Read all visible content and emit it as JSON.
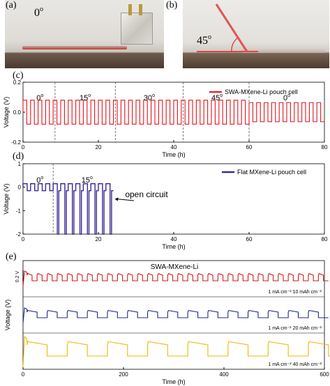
{
  "panels": {
    "a": {
      "letter": "(a)",
      "angle_label": "0",
      "angle_unit": "o"
    },
    "b": {
      "letter": "(b)",
      "angle_label": "45",
      "angle_unit": "o"
    },
    "c": {
      "letter": "(c)"
    },
    "d": {
      "letter": "(d)"
    },
    "e": {
      "letter": "(e)"
    }
  },
  "chart_data": [
    {
      "panel": "c",
      "type": "line",
      "title": "",
      "xlabel": "Time (h)",
      "ylabel": "Voltage (V)",
      "xlim": [
        0,
        80
      ],
      "ylim": [
        -0.2,
        0.2
      ],
      "xticks": [
        0,
        20,
        40,
        60,
        80
      ],
      "yticks": [
        -0.2,
        0.0,
        0.2
      ],
      "series": [
        {
          "name": "SWA-MXene-Li pouch cell",
          "color": "#e0151b",
          "pattern": "square-wave",
          "period_h": 2.0,
          "high_v": 0.08,
          "low_v": -0.08,
          "x_range": [
            0,
            80
          ]
        }
      ],
      "dividers_x": [
        8.5,
        24.5,
        42.5,
        60
      ],
      "angle_labels": [
        {
          "x": 4.5,
          "text": "0",
          "unit": "o"
        },
        {
          "x": 16.5,
          "text": "15",
          "unit": "o"
        },
        {
          "x": 33.5,
          "text": "30",
          "unit": "o"
        },
        {
          "x": 51.5,
          "text": "45",
          "unit": "o"
        },
        {
          "x": 70,
          "text": "0",
          "unit": "o"
        }
      ]
    },
    {
      "panel": "d",
      "type": "line",
      "title": "",
      "xlabel": "Time (h)",
      "ylabel": "Voltage (V)",
      "xlim": [
        0,
        80
      ],
      "ylim": [
        -2,
        1
      ],
      "xticks": [
        0,
        20,
        40,
        60,
        80
      ],
      "yticks": [
        -2,
        -1,
        0,
        1
      ],
      "series": [
        {
          "name": "Flat MXene-Li pouch cell",
          "color": "#3a2a94",
          "pattern": "square-wave-with-drops",
          "period_h": 2.0,
          "high_v": 0.15,
          "low_v": -0.15,
          "x_range": [
            0,
            24
          ],
          "drop_start_h": 8,
          "drop_v": -2.0
        }
      ],
      "dividers_x": [
        8
      ],
      "angle_labels": [
        {
          "x": 4.5,
          "text": "0",
          "unit": "o"
        },
        {
          "x": 17,
          "text": "15",
          "unit": "o"
        }
      ],
      "annotation": {
        "text": "open circuit",
        "arrow_to": [
          24,
          -0.5
        ]
      }
    },
    {
      "panel": "e",
      "type": "line",
      "title": "SWA-MXene-Li",
      "xlabel": "Time (h)",
      "ylabel": "Voltage (V)",
      "xlim": [
        0,
        600
      ],
      "xticks": [
        0,
        200,
        400,
        600
      ],
      "scale_bar": "0.2 V",
      "series": [
        {
          "name": "1 mA cm⁻²   10 mAh cm⁻²",
          "color": "#d01a1f",
          "period_h": 20
        },
        {
          "name": "1 mA cm⁻²   20 mAh cm⁻²",
          "color": "#1f2a8a",
          "period_h": 40
        },
        {
          "name": "1 mA cm⁻²   40 mAh cm⁻²",
          "color": "#f2b705",
          "period_h": 80
        }
      ]
    }
  ]
}
